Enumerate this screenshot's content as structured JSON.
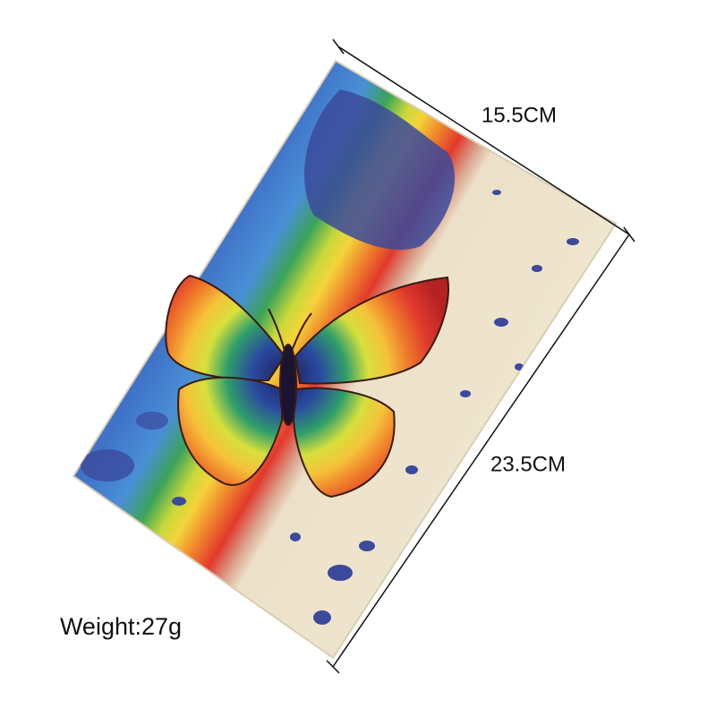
{
  "labels": {
    "width": "15.5CM",
    "height": "23.5CM",
    "weight": "Weight:27g"
  }
}
